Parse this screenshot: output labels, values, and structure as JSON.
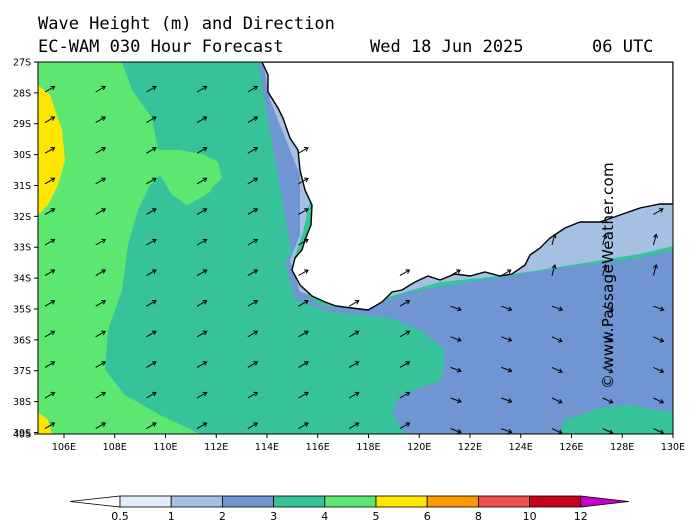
{
  "header": {
    "title": "Wave Height (m) and Direction",
    "model": "EC-WAM 030 Hour Forecast",
    "date": "Wed 18 Jun 2025",
    "utc": "06 UTC"
  },
  "watermark": "© www.PassageWeather.com",
  "map": {
    "latitude_labels": [
      "27S",
      "28S",
      "29S",
      "30S",
      "31S",
      "32S",
      "33S",
      "34S",
      "35S",
      "36S",
      "37S",
      "38S",
      "39S",
      "40S"
    ],
    "longitude_labels": [
      "106E",
      "108E",
      "110E",
      "112E",
      "114E",
      "116E",
      "118E",
      "120E",
      "122E",
      "124E",
      "126E",
      "128E",
      "130E"
    ],
    "land_color": "#ffffff",
    "coast_color": "#000000"
  },
  "legend": {
    "labels": [
      "0.5",
      "1",
      "2",
      "3",
      "4",
      "5",
      "6",
      "8",
      "10",
      "12"
    ],
    "colors": [
      "#ffffff",
      "#e0ecfa",
      "#a6c0e3",
      "#6f95d2",
      "#36c39a",
      "#5ce870",
      "#ffe600",
      "#fa9a00",
      "#f05050",
      "#c8001e",
      "#c800c8"
    ]
  }
}
